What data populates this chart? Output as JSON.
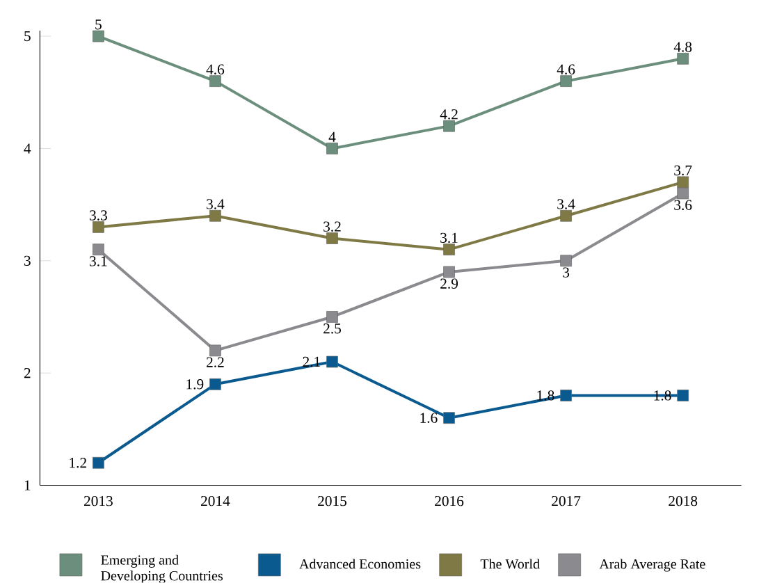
{
  "chart_data": {
    "type": "line",
    "categories": [
      "2013",
      "2014",
      "2015",
      "2016",
      "2017",
      "2018"
    ],
    "series": [
      {
        "name": "Emerging and Developing Countries",
        "color": "#6b8f7c",
        "values": [
          5,
          4.6,
          4,
          4.2,
          4.6,
          4.8
        ]
      },
      {
        "name": "Advanced Economies",
        "color": "#0a5a8f",
        "values": [
          1.2,
          1.9,
          2.1,
          1.6,
          1.8,
          1.8
        ]
      },
      {
        "name": "The World",
        "color": "#7f7a45",
        "values": [
          3.3,
          3.4,
          3.2,
          3.1,
          3.4,
          3.7
        ]
      },
      {
        "name": "Arab Average Rate",
        "color": "#8a8a8f",
        "values": [
          3.1,
          2.2,
          2.5,
          2.9,
          3,
          3.6
        ]
      }
    ],
    "ylim": [
      1,
      5.05
    ],
    "yticks": [
      1,
      2,
      3,
      4,
      5
    ],
    "grid": false,
    "legend": "bottom",
    "marker": "square",
    "line_style": "solid",
    "data_labels": true
  }
}
